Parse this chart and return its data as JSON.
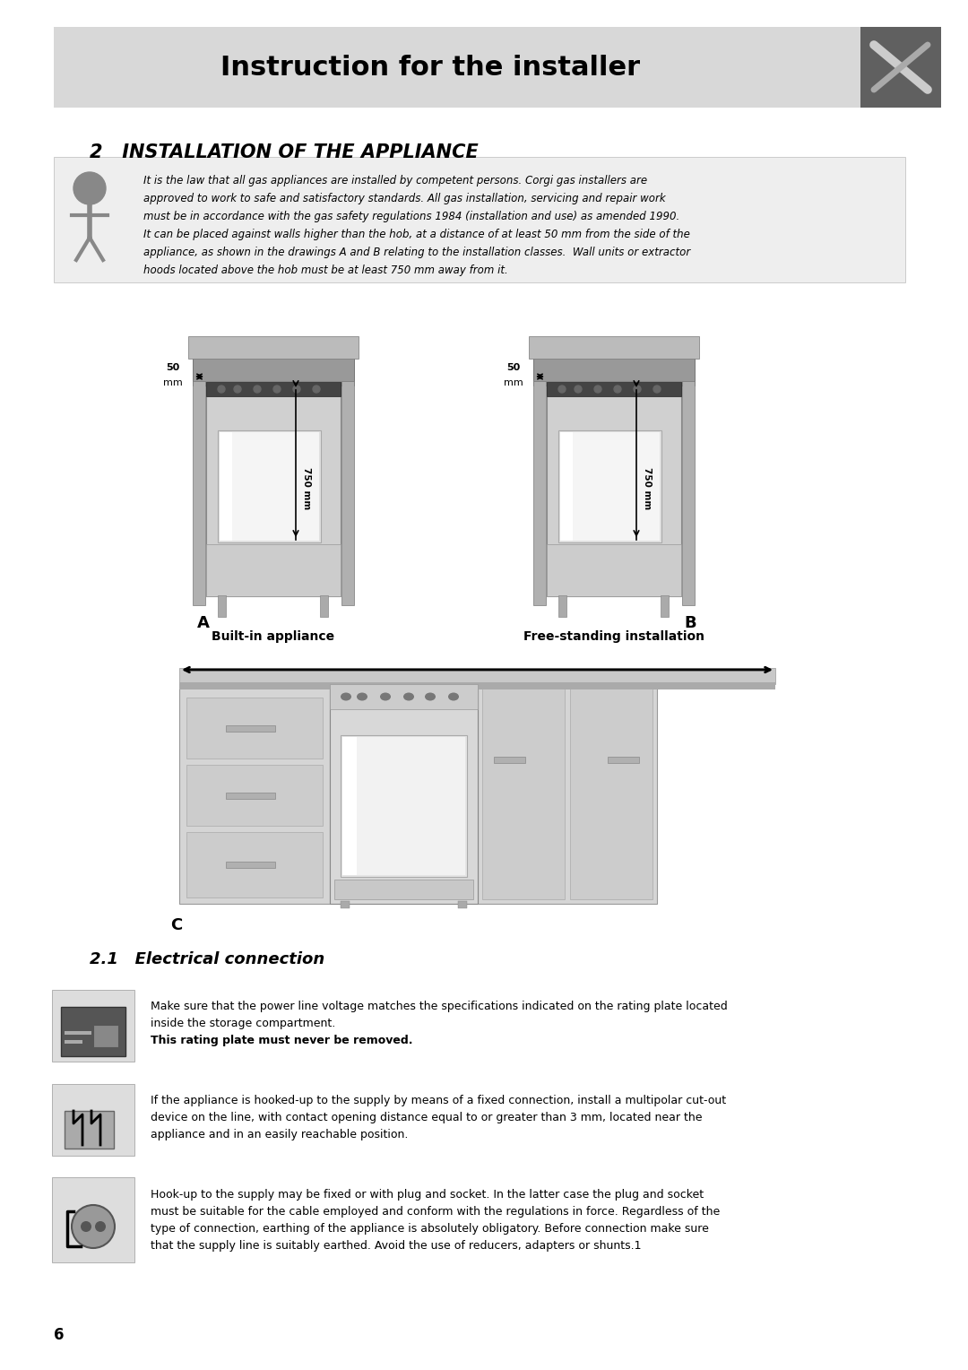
{
  "page_bg": "#ffffff",
  "header_bg": "#d8d8d8",
  "header_text": "Instruction for the installer",
  "header_fontsize": 22,
  "icon_bg": "#606060",
  "section_title": "2   INSTALLATION OF THE APPLIANCE",
  "section_title_fontsize": 15,
  "info_box_bg": "#eeeeee",
  "label_A": "A",
  "label_B": "B",
  "label_builtin": "Built-in appliance",
  "label_freestanding": "Free-standing installation",
  "label_C": "C",
  "section_21": "2.1   Electrical connection",
  "page_num": "6",
  "text_color": "#000000",
  "gray_light": "#c8c8c8",
  "gray_medium": "#a0a0a0",
  "gray_dark": "#808080"
}
